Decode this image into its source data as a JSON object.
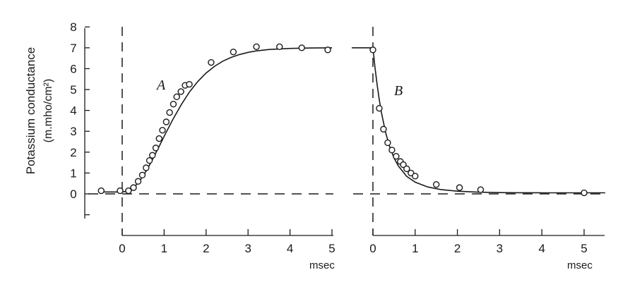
{
  "chart_data": [
    {
      "type": "scatter",
      "panel_label": "A",
      "ylabel_line1": "Potassium conductance",
      "ylabel_line2": "(m.mho/cm²)",
      "xlabel": "msec",
      "xlim": [
        -0.5,
        5
      ],
      "ylim": [
        -1,
        8
      ],
      "x_ticks": [
        0,
        1,
        2,
        3,
        4,
        5
      ],
      "y_ticks": [
        0,
        1,
        2,
        3,
        4,
        5,
        6,
        7,
        8
      ],
      "series": [
        {
          "style": "open-circle markers",
          "x": [
            -0.5,
            -0.05,
            0.15,
            0.27,
            0.38,
            0.48,
            0.57,
            0.65,
            0.72,
            0.8,
            0.88,
            0.96,
            1.05,
            1.13,
            1.22,
            1.3,
            1.4,
            1.5,
            1.6,
            2.12,
            2.65,
            3.2,
            3.75,
            4.28,
            4.9
          ],
          "y": [
            0.15,
            0.15,
            0.15,
            0.3,
            0.6,
            0.9,
            1.25,
            1.6,
            1.85,
            2.2,
            2.65,
            3.05,
            3.45,
            3.9,
            4.3,
            4.65,
            4.9,
            5.2,
            5.25,
            6.3,
            6.8,
            7.05,
            7.05,
            7.0,
            6.9
          ]
        },
        {
          "style": "solid fitted curve",
          "x": [
            -0.5,
            -0.2,
            0,
            0.1,
            0.2,
            0.3,
            0.4,
            0.5,
            0.6,
            0.7,
            0.8,
            0.9,
            1.0,
            1.2,
            1.4,
            1.6,
            1.8,
            2.0,
            2.2,
            2.4,
            2.6,
            2.8,
            3.0,
            3.2,
            3.5,
            4.0,
            4.5,
            5.0
          ],
          "y": [
            0.09,
            0.09,
            0.09,
            0.12,
            0.2,
            0.35,
            0.58,
            0.86,
            1.19,
            1.56,
            1.95,
            2.35,
            2.76,
            3.54,
            4.25,
            4.87,
            5.38,
            5.79,
            6.11,
            6.36,
            6.54,
            6.68,
            6.78,
            6.85,
            6.92,
            6.97,
            6.99,
            7.0
          ]
        }
      ],
      "dashed_lines": "horizontal at y=0; vertical at x=0"
    },
    {
      "type": "scatter",
      "panel_label": "B",
      "xlabel": "msec",
      "xlim": [
        -0.5,
        5.5
      ],
      "ylim": [
        -1,
        8
      ],
      "x_ticks": [
        0,
        1,
        2,
        3,
        4,
        5
      ],
      "series": [
        {
          "style": "open-circle markers",
          "x": [
            0.0,
            0.15,
            0.25,
            0.35,
            0.45,
            0.55,
            0.65,
            0.72,
            0.8,
            0.9,
            1.0,
            1.5,
            2.05,
            2.55,
            5.0
          ],
          "y": [
            6.9,
            4.1,
            3.1,
            2.45,
            2.1,
            1.8,
            1.55,
            1.4,
            1.2,
            1.0,
            0.85,
            0.45,
            0.3,
            0.2,
            0.05
          ]
        },
        {
          "style": "solid fitted curve",
          "x": [
            -0.5,
            -0.1,
            0,
            0.05,
            0.1,
            0.15,
            0.2,
            0.3,
            0.4,
            0.5,
            0.6,
            0.8,
            1.0,
            1.3,
            1.6,
            2.0,
            2.5,
            3.0,
            3.5,
            4.0,
            5.0,
            5.5
          ],
          "y": [
            7.0,
            7.0,
            7.0,
            6.04,
            5.22,
            4.52,
            3.91,
            2.95,
            2.24,
            1.72,
            1.34,
            0.84,
            0.56,
            0.33,
            0.21,
            0.13,
            0.08,
            0.06,
            0.055,
            0.052,
            0.05,
            0.05
          ]
        }
      ],
      "dashed_lines": "horizontal at y=0; vertical at x=0"
    }
  ]
}
